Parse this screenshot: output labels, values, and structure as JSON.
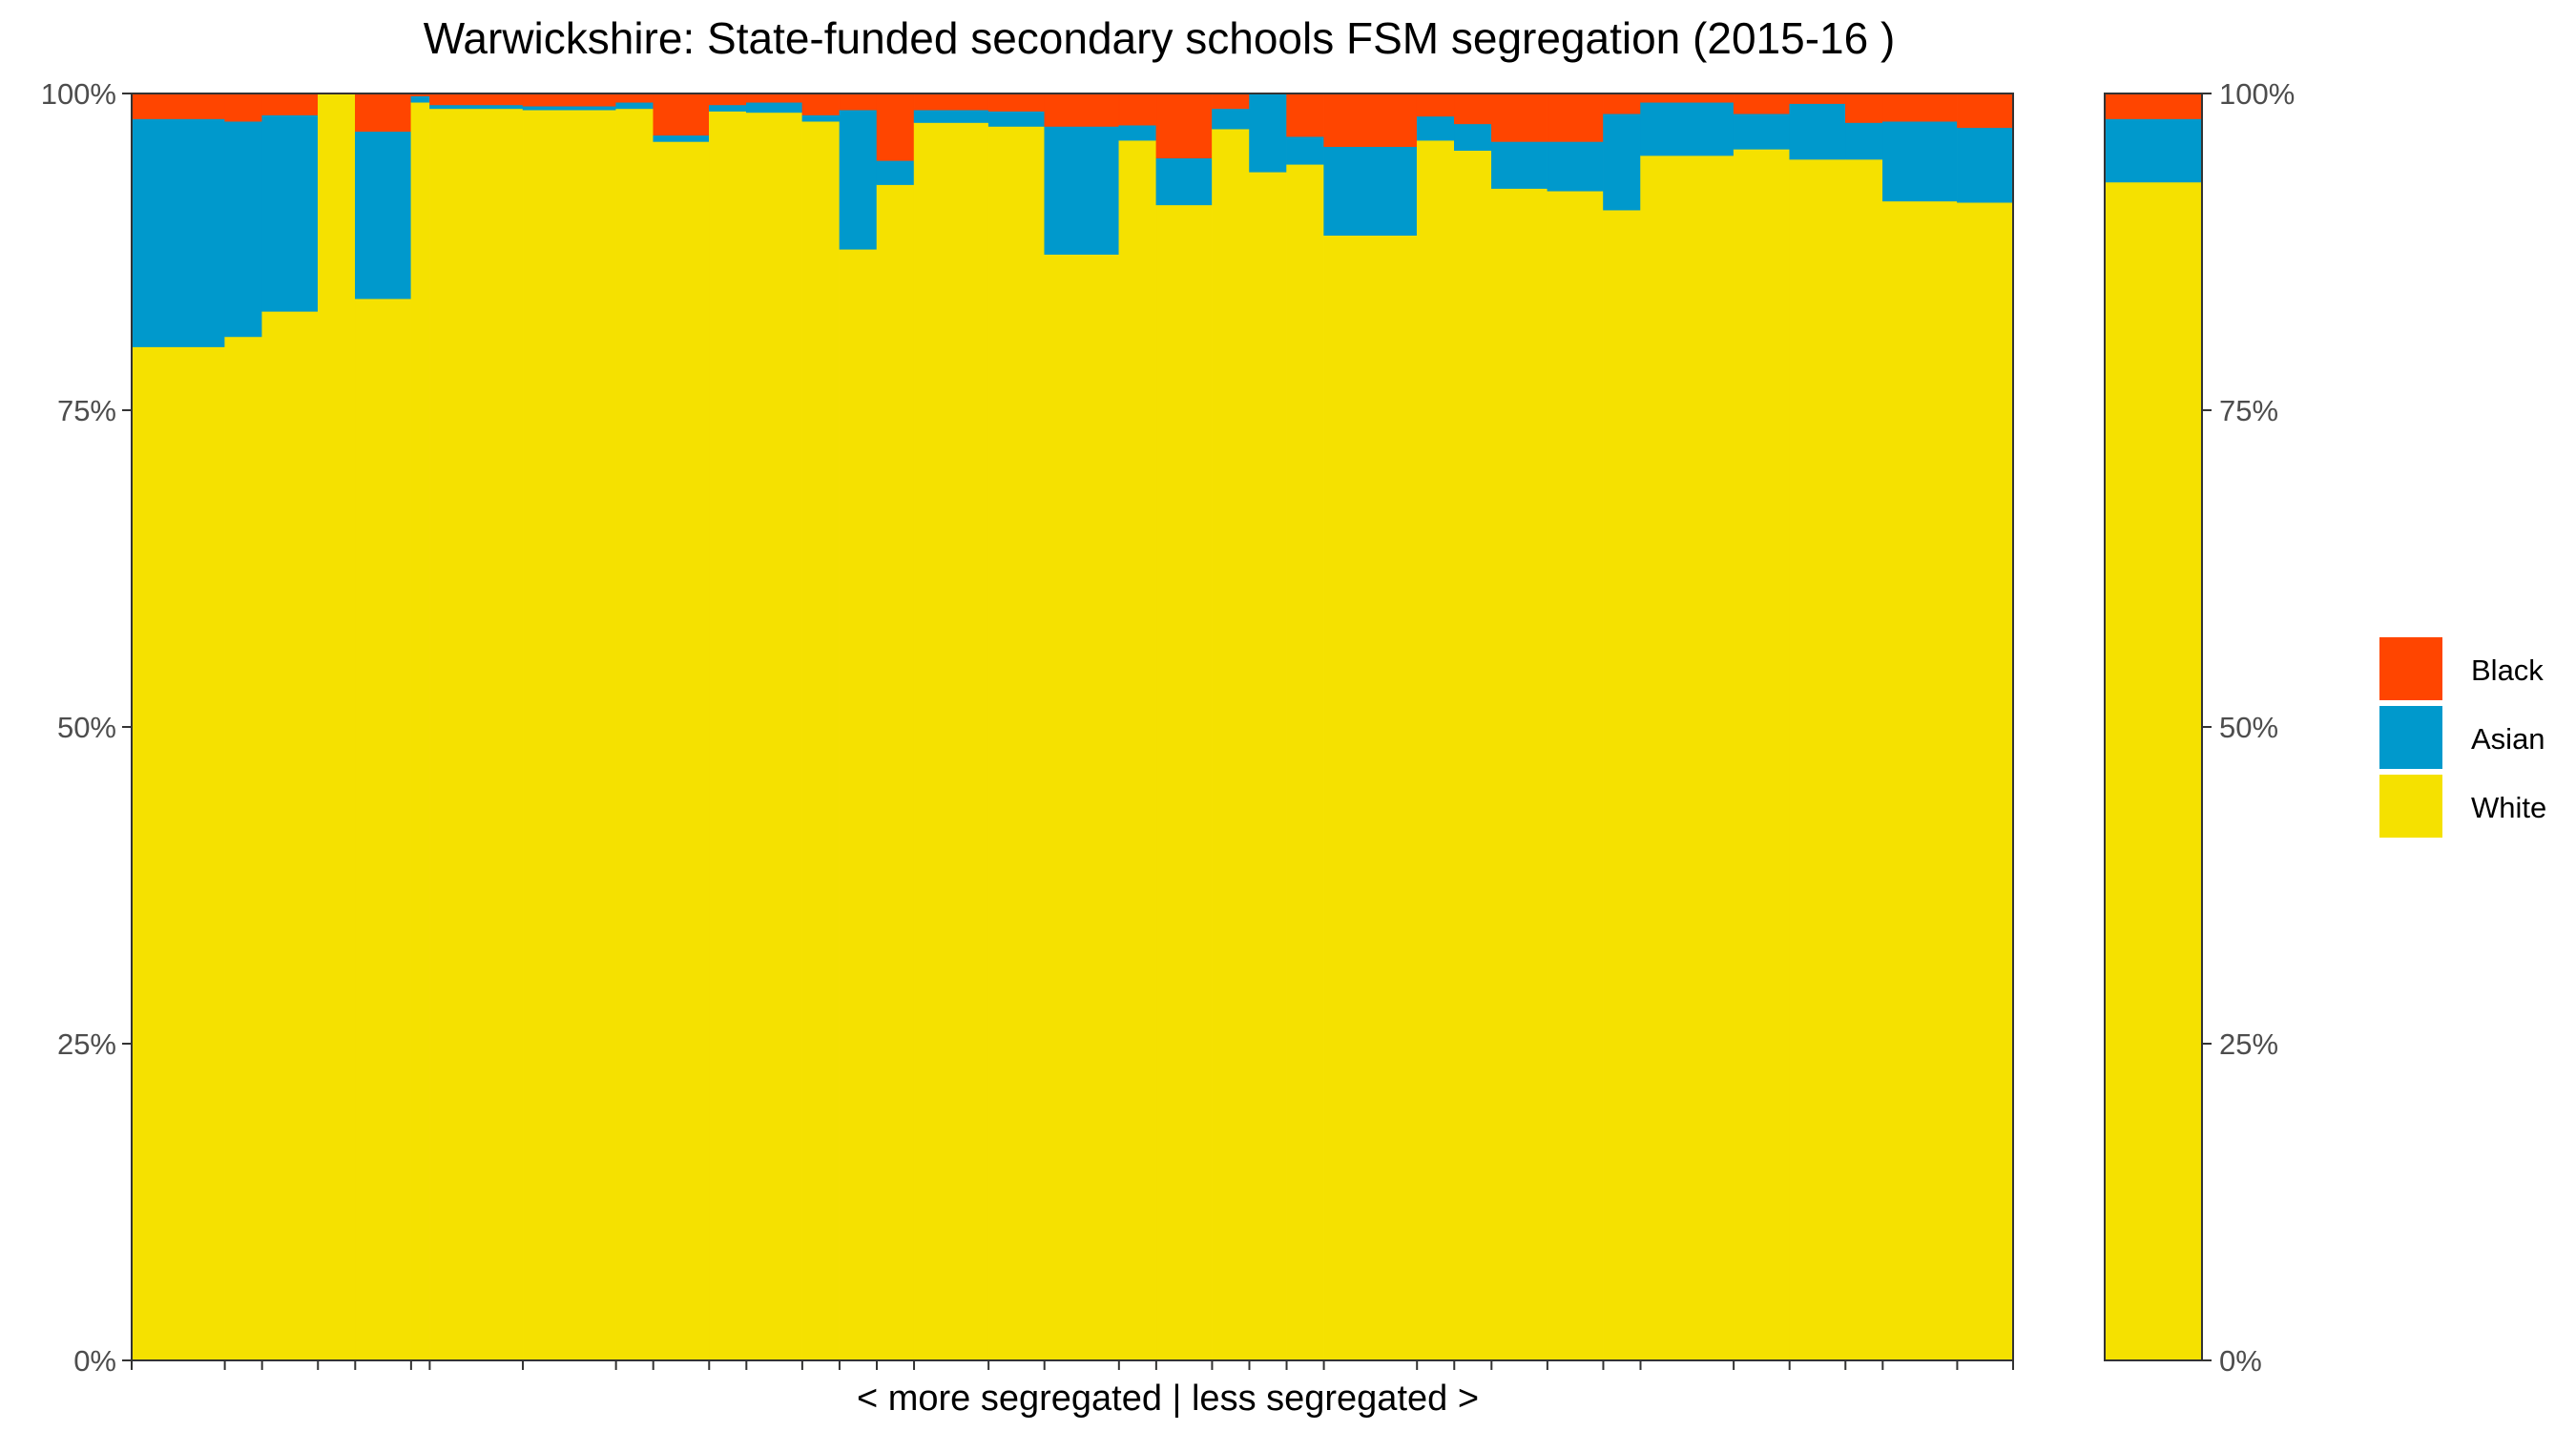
{
  "chart_data": {
    "type": "bar",
    "stacked": true,
    "title": "Warwickshire: State-funded secondary schools FSM segregation (2015-16 )",
    "xlabel": "< more segregated | less segregated >",
    "ylabel": "",
    "ylim": [
      0,
      100
    ],
    "y_ticks": [
      "0%",
      "25%",
      "50%",
      "75%",
      "100%"
    ],
    "legend_position": "right",
    "series_order_bottom_to_top": [
      "White",
      "Asian",
      "Black"
    ],
    "legend": [
      {
        "name": "Black",
        "color": "#FF4500"
      },
      {
        "name": "Asian",
        "color": "#0099CC"
      },
      {
        "name": "White",
        "color": "#F5E100"
      }
    ],
    "schools": [
      {
        "width": 0.05,
        "white": 80.0,
        "asian": 18.0
      },
      {
        "width": 0.02,
        "white": 80.8,
        "asian": 17.0
      },
      {
        "width": 0.03,
        "white": 82.8,
        "asian": 15.5
      },
      {
        "width": 0.02,
        "white": 100.0,
        "asian": 0.0
      },
      {
        "width": 0.03,
        "white": 83.8,
        "asian": 13.2
      },
      {
        "width": 0.01,
        "white": 99.3,
        "asian": 0.5
      },
      {
        "width": 0.05,
        "white": 98.8,
        "asian": 0.3
      },
      {
        "width": 0.05,
        "white": 98.7,
        "asian": 0.3
      },
      {
        "width": 0.02,
        "white": 98.8,
        "asian": 0.5
      },
      {
        "width": 0.03,
        "white": 96.2,
        "asian": 0.5
      },
      {
        "width": 0.02,
        "white": 98.6,
        "asian": 0.5
      },
      {
        "width": 0.03,
        "white": 98.5,
        "asian": 0.8
      },
      {
        "width": 0.02,
        "white": 97.8,
        "asian": 0.5
      },
      {
        "width": 0.02,
        "white": 87.7,
        "asian": 11.0
      },
      {
        "width": 0.02,
        "white": 92.8,
        "asian": 1.9
      },
      {
        "width": 0.04,
        "white": 97.7,
        "asian": 1.0
      },
      {
        "width": 0.03,
        "white": 97.4,
        "asian": 1.2
      },
      {
        "width": 0.04,
        "white": 87.3,
        "asian": 10.1
      },
      {
        "width": 0.02,
        "white": 96.3,
        "asian": 1.2
      },
      {
        "width": 0.03,
        "white": 91.2,
        "asian": 3.7
      },
      {
        "width": 0.02,
        "white": 97.2,
        "asian": 1.6
      },
      {
        "width": 0.02,
        "white": 93.8,
        "asian": 6.2
      },
      {
        "width": 0.02,
        "white": 94.4,
        "asian": 2.2
      },
      {
        "width": 0.05,
        "white": 88.8,
        "asian": 7.0
      },
      {
        "width": 0.02,
        "white": 96.3,
        "asian": 1.9
      },
      {
        "width": 0.02,
        "white": 95.5,
        "asian": 2.1
      },
      {
        "width": 0.03,
        "white": 92.5,
        "asian": 3.7
      },
      {
        "width": 0.03,
        "white": 92.3,
        "asian": 3.9
      },
      {
        "width": 0.02,
        "white": 90.8,
        "asian": 7.6
      },
      {
        "width": 0.05,
        "white": 95.1,
        "asian": 4.2
      },
      {
        "width": 0.03,
        "white": 95.6,
        "asian": 2.8
      },
      {
        "width": 0.03,
        "white": 94.8,
        "asian": 4.4
      },
      {
        "width": 0.02,
        "white": 94.8,
        "asian": 2.9
      },
      {
        "width": 0.04,
        "white": 91.5,
        "asian": 6.3
      },
      {
        "width": 0.03,
        "white": 91.4,
        "asian": 5.9
      }
    ],
    "overall": {
      "white": 93.0,
      "asian": 5.0
    }
  }
}
